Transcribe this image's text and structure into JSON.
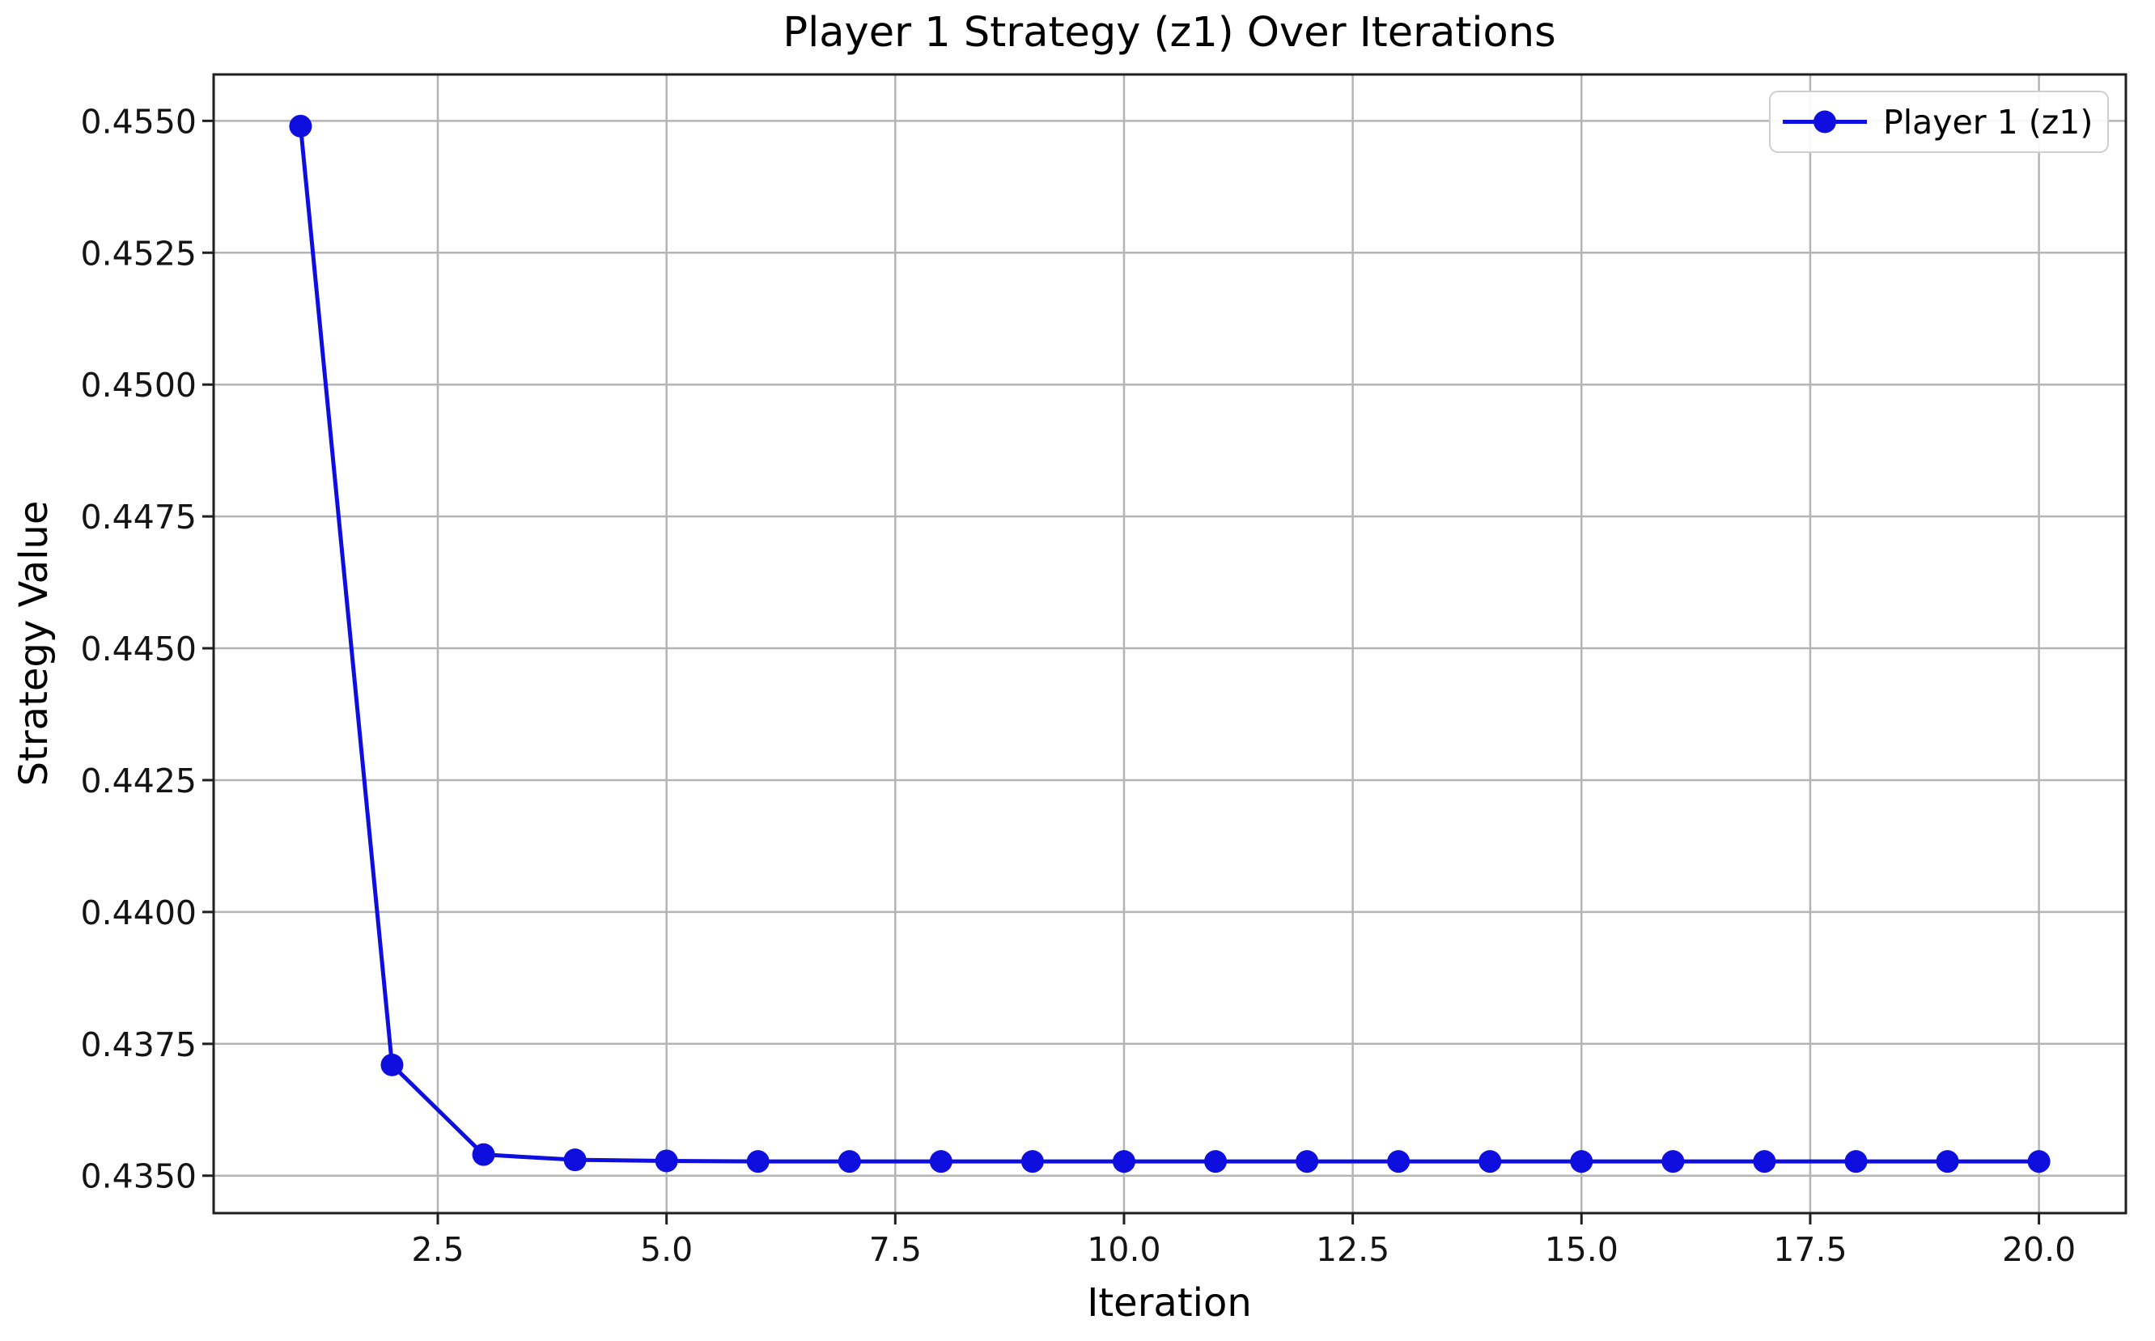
{
  "chart_data": {
    "type": "line",
    "title": "Player 1 Strategy (z1) Over Iterations",
    "xlabel": "Iteration",
    "ylabel": "Strategy Value",
    "grid": true,
    "legend_position": "upper right",
    "x": [
      1,
      2,
      3,
      4,
      5,
      6,
      7,
      8,
      9,
      10,
      11,
      12,
      13,
      14,
      15,
      16,
      17,
      18,
      19,
      20
    ],
    "series": [
      {
        "name": "Player 1 (z1)",
        "color": "#0e0ede",
        "marker": "circle",
        "values": [
          0.4549,
          0.4371,
          0.4354,
          0.4353,
          0.43528,
          0.43527,
          0.43527,
          0.43527,
          0.43527,
          0.43527,
          0.43527,
          0.43527,
          0.43527,
          0.43527,
          0.43527,
          0.43527,
          0.43527,
          0.43527,
          0.43527,
          0.43527
        ]
      }
    ],
    "xlim": [
      0.05,
      20.95
    ],
    "ylim": [
      0.43429,
      0.45588
    ],
    "xticks": {
      "values": [
        2.5,
        5.0,
        7.5,
        10.0,
        12.5,
        15.0,
        17.5,
        20.0
      ],
      "labels": [
        "2.5",
        "5.0",
        "7.5",
        "10.0",
        "12.5",
        "15.0",
        "17.5",
        "20.0"
      ]
    },
    "yticks": {
      "values": [
        0.435,
        0.4375,
        0.44,
        0.4425,
        0.445,
        0.4475,
        0.45,
        0.4525,
        0.455
      ],
      "labels": [
        "0.4350",
        "0.4375",
        "0.4400",
        "0.4425",
        "0.4450",
        "0.4475",
        "0.4500",
        "0.4525",
        "0.4550"
      ]
    }
  },
  "colors": {
    "series_blue": "#0e0ede",
    "gridline": "#b4b4b4",
    "spine": "#1f1f1f",
    "text": "#000000",
    "legend_border": "#cfcfcf",
    "background": "#ffffff"
  }
}
